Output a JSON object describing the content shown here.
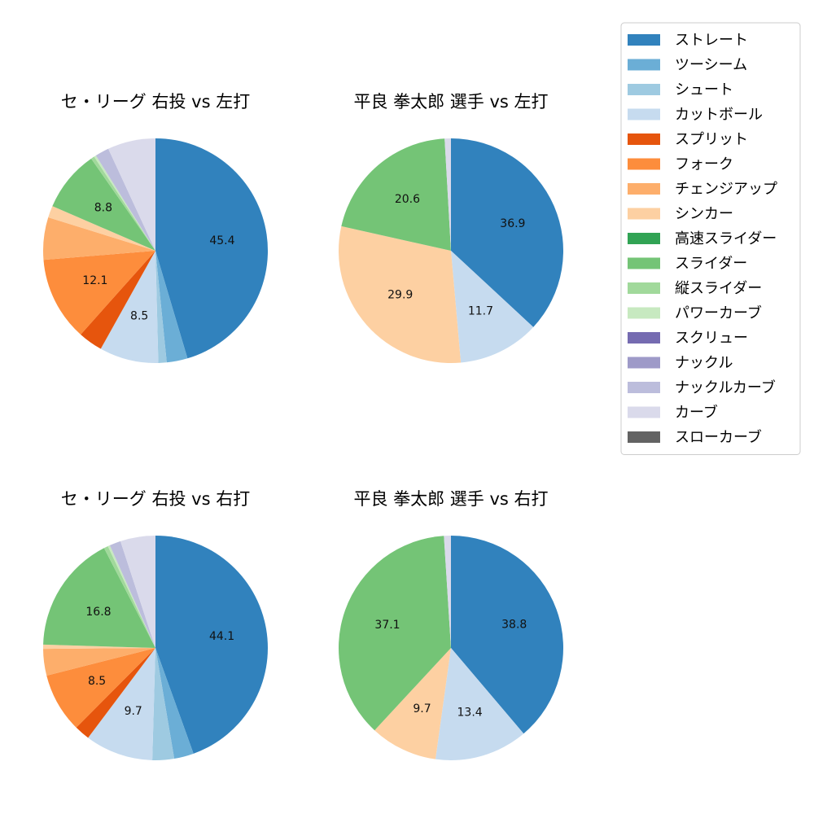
{
  "chart_data": [
    {
      "type": "pie",
      "title": "セ・リーグ 右投 vs 左打",
      "slices": [
        {
          "label": "ストレート",
          "value": 45.4,
          "color": "#3182bd",
          "shown": "45.4"
        },
        {
          "label": "ツーシーム",
          "value": 3.0,
          "color": "#6baed6",
          "shown": ""
        },
        {
          "label": "シュート",
          "value": 1.2,
          "color": "#9ecae1",
          "shown": ""
        },
        {
          "label": "カットボール",
          "value": 8.5,
          "color": "#c6dbef",
          "shown": "8.5"
        },
        {
          "label": "スプリット",
          "value": 3.5,
          "color": "#e6550d",
          "shown": ""
        },
        {
          "label": "フォーク",
          "value": 12.1,
          "color": "#fd8d3c",
          "shown": "12.1"
        },
        {
          "label": "チェンジアップ",
          "value": 6.1,
          "color": "#fdae6b",
          "shown": ""
        },
        {
          "label": "シンカー",
          "value": 1.7,
          "color": "#fdd0a2",
          "shown": ""
        },
        {
          "label": "高速スライダー",
          "value": 0.0,
          "color": "#31a354",
          "shown": ""
        },
        {
          "label": "スライダー",
          "value": 8.8,
          "color": "#74c476",
          "shown": "8.8"
        },
        {
          "label": "縦スライダー",
          "value": 0.5,
          "color": "#a1d99b",
          "shown": ""
        },
        {
          "label": "パワーカーブ",
          "value": 0.3,
          "color": "#c7e9c0",
          "shown": ""
        },
        {
          "label": "スクリュー",
          "value": 0.0,
          "color": "#756bb1",
          "shown": ""
        },
        {
          "label": "ナックル",
          "value": 0.0,
          "color": "#9e9ac8",
          "shown": ""
        },
        {
          "label": "ナックルカーブ",
          "value": 2.0,
          "color": "#bcbddc",
          "shown": ""
        },
        {
          "label": "カーブ",
          "value": 6.9,
          "color": "#dadaeb",
          "shown": ""
        },
        {
          "label": "スローカーブ",
          "value": 0.0,
          "color": "#636363",
          "shown": ""
        }
      ]
    },
    {
      "type": "pie",
      "title": "平良 拳太郎 選手 vs 左打",
      "slices": [
        {
          "label": "ストレート",
          "value": 36.9,
          "color": "#3182bd",
          "shown": "36.9"
        },
        {
          "label": "カットボール",
          "value": 11.7,
          "color": "#c6dbef",
          "shown": "11.7"
        },
        {
          "label": "シンカー",
          "value": 29.9,
          "color": "#fdd0a2",
          "shown": "29.9"
        },
        {
          "label": "スライダー",
          "value": 20.6,
          "color": "#74c476",
          "shown": "20.6"
        },
        {
          "label": "カーブ",
          "value": 0.9,
          "color": "#dadaeb",
          "shown": ""
        }
      ]
    },
    {
      "type": "pie",
      "title": "セ・リーグ 右投 vs 右打",
      "slices": [
        {
          "label": "ストレート",
          "value": 44.1,
          "color": "#3182bd",
          "shown": "44.1"
        },
        {
          "label": "ツーシーム",
          "value": 2.8,
          "color": "#6baed6",
          "shown": ""
        },
        {
          "label": "シュート",
          "value": 3.1,
          "color": "#9ecae1",
          "shown": ""
        },
        {
          "label": "カットボール",
          "value": 9.7,
          "color": "#c6dbef",
          "shown": "9.7"
        },
        {
          "label": "スプリット",
          "value": 2.2,
          "color": "#e6550d",
          "shown": ""
        },
        {
          "label": "フォーク",
          "value": 8.5,
          "color": "#fd8d3c",
          "shown": "8.5"
        },
        {
          "label": "チェンジアップ",
          "value": 3.8,
          "color": "#fdae6b",
          "shown": ""
        },
        {
          "label": "シンカー",
          "value": 0.6,
          "color": "#fdd0a2",
          "shown": ""
        },
        {
          "label": "高速スライダー",
          "value": 0.0,
          "color": "#31a354",
          "shown": ""
        },
        {
          "label": "スライダー",
          "value": 16.8,
          "color": "#74c476",
          "shown": "16.8"
        },
        {
          "label": "縦スライダー",
          "value": 0.6,
          "color": "#a1d99b",
          "shown": ""
        },
        {
          "label": "パワーカーブ",
          "value": 0.3,
          "color": "#c7e9c0",
          "shown": ""
        },
        {
          "label": "スクリュー",
          "value": 0.0,
          "color": "#756bb1",
          "shown": ""
        },
        {
          "label": "ナックル",
          "value": 0.0,
          "color": "#9e9ac8",
          "shown": ""
        },
        {
          "label": "ナックルカーブ",
          "value": 1.6,
          "color": "#bcbddc",
          "shown": ""
        },
        {
          "label": "カーブ",
          "value": 5.0,
          "color": "#dadaeb",
          "shown": ""
        },
        {
          "label": "スローカーブ",
          "value": 0.0,
          "color": "#636363",
          "shown": ""
        }
      ]
    },
    {
      "type": "pie",
      "title": "平良 拳太郎 選手 vs 右打",
      "slices": [
        {
          "label": "ストレート",
          "value": 38.8,
          "color": "#3182bd",
          "shown": "38.8"
        },
        {
          "label": "カットボール",
          "value": 13.4,
          "color": "#c6dbef",
          "shown": "13.4"
        },
        {
          "label": "シンカー",
          "value": 9.7,
          "color": "#fdd0a2",
          "shown": "9.7"
        },
        {
          "label": "スライダー",
          "value": 37.1,
          "color": "#74c476",
          "shown": "37.1"
        },
        {
          "label": "カーブ",
          "value": 1.0,
          "color": "#dadaeb",
          "shown": ""
        }
      ]
    }
  ],
  "legend": {
    "placement": "top-right",
    "items": [
      {
        "label": "ストレート",
        "color": "#3182bd"
      },
      {
        "label": "ツーシーム",
        "color": "#6baed6"
      },
      {
        "label": "シュート",
        "color": "#9ecae1"
      },
      {
        "label": "カットボール",
        "color": "#c6dbef"
      },
      {
        "label": "スプリット",
        "color": "#e6550d"
      },
      {
        "label": "フォーク",
        "color": "#fd8d3c"
      },
      {
        "label": "チェンジアップ",
        "color": "#fdae6b"
      },
      {
        "label": "シンカー",
        "color": "#fdd0a2"
      },
      {
        "label": "高速スライダー",
        "color": "#31a354"
      },
      {
        "label": "スライダー",
        "color": "#74c476"
      },
      {
        "label": "縦スライダー",
        "color": "#a1d99b"
      },
      {
        "label": "パワーカーブ",
        "color": "#c7e9c0"
      },
      {
        "label": "スクリュー",
        "color": "#756bb1"
      },
      {
        "label": "ナックル",
        "color": "#9e9ac8"
      },
      {
        "label": "ナックルカーブ",
        "color": "#bcbddc"
      },
      {
        "label": "カーブ",
        "color": "#dadaeb"
      },
      {
        "label": "スローカーブ",
        "color": "#636363"
      }
    ]
  }
}
